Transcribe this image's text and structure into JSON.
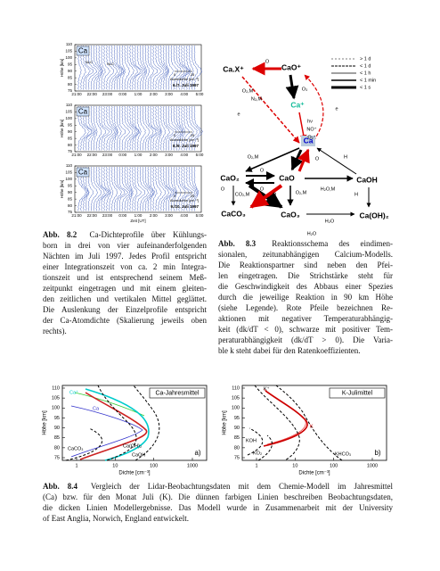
{
  "figure_8_2": {
    "panel_labels": [
      "Ca",
      "Ca",
      "Ca"
    ],
    "dates": [
      "6./7. Juli 1997",
      "8./9. Juli 1997",
      "9./10. Juli 1997"
    ],
    "y_axis_label": "Höhe [km]",
    "height_ticks": [
      110,
      105,
      100,
      95,
      90,
      85,
      80,
      75
    ],
    "time_ticks": [
      "21:00",
      "22:00",
      "23:00",
      "0:00",
      "1:00",
      "2:00",
      "3:00",
      "4:00",
      "5:00"
    ],
    "x_axis_label": "Zeit [UT]",
    "scale_ticks": [
      0,
      25
    ],
    "scale_label": "Atomdichte [cm⁻³]",
    "nlc_labels": [
      "NLC",
      "NLC"
    ]
  },
  "caption_8_2": {
    "label": "Abb. 8.2",
    "lines": [
      "Ca-Dichteprofile über Kühlungs-",
      "born in drei von vier aufeinanderfolgenden",
      "Nächten im Juli 1997. Jedes Profil entspricht",
      "einer Integrationszeit von ca. 2 min Integra-",
      "tionszeit und ist entsprechend seinem Meß-",
      "zeitpunkt eingetragen und mit einem gleiten-",
      "den zeitlichen und vertikalen Mittel geglättet.",
      "Die Auslenkung der Einzelprofile entspricht",
      "der Ca-Atomdichte (Skalierung jeweils oben",
      "rechts)."
    ]
  },
  "figure_8_3": {
    "species": [
      "Ca.X⁺",
      "CaO⁺",
      "Ca⁺",
      "Ca",
      "CaO₂",
      "CaO",
      "CaOH",
      "CaCO₃",
      "CaO₃",
      "Ca(OH)₂"
    ],
    "reactants": [
      "O",
      "O₂,M",
      "N₂,M",
      "O₃",
      "e",
      "e",
      "hν",
      "NO⁺",
      "O₂⁺",
      "O₂,M",
      "O₃",
      "O",
      "H",
      "O",
      "O",
      "O",
      "CO₂,M",
      "O",
      "O₂,M",
      "H₂O,M",
      "H",
      "H₂O",
      "H₂O"
    ],
    "legend": [
      "> 1 d",
      "< 1 d",
      "< 1 h",
      "< 1 min",
      "< 1 s"
    ]
  },
  "caption_8_3": {
    "label": "Abb. 8.3",
    "lines": [
      "Reaktionsschema des eindimen-",
      "sionalen, zeitunabhängigen Calcium-Modells.",
      "Die Reaktionspartner sind neben den Pfei-",
      "len eingetragen. Die Strichstärke steht für",
      "die Geschwindigkeit des Abbaus einer Spezies",
      "durch die jeweilige Reaktion in 90 km Höhe",
      "(siehe Legende). Rote Pfeile bezeichnen Re-",
      "aktionen mit negativer Temperaturabhängig-",
      "keit (dk/dT < 0), schwarze mit positiver Tem-",
      "peraturabhängigkeit (dk/dT > 0). Die Varia-",
      "ble k steht dabei für den Ratenkoeffizienten."
    ]
  },
  "figure_8_4": {
    "y_axis_label": "Höhe [km]",
    "x_axis_label": "Dichte [cm⁻³]",
    "y_ticks": [
      110,
      105,
      100,
      95,
      90,
      85,
      80,
      75
    ],
    "x_ticks": [
      1,
      10,
      100,
      1000
    ],
    "panel_a": {
      "title": "Ca-Jahresmittel",
      "labels": [
        "Ca⁺",
        "Ca",
        "CaCO₃",
        "Ca(OH)₂",
        "CaOH"
      ],
      "tag": "a)"
    },
    "panel_b": {
      "title": "K-Julimittel",
      "labels": [
        "K⁺",
        "K",
        "KOH",
        "KO₂",
        "KHCO₃"
      ],
      "tag": "b)"
    }
  },
  "caption_8_4": {
    "label": "Abb. 8.4",
    "lines": [
      "Vergleich der Lidar-Beobachtungsdaten mit dem Chemie-Modell im Jahresmittel",
      "(Ca) bzw. für den Monat Juli (K). Die dünnen farbigen Linien beschreiben Beobachtungsdaten,",
      "die dicken Linien Modellergebnisse. Das Modell wurde in Zusammenarbeit mit der University",
      "of East Anglia, Norwich, England entwickelt."
    ]
  }
}
